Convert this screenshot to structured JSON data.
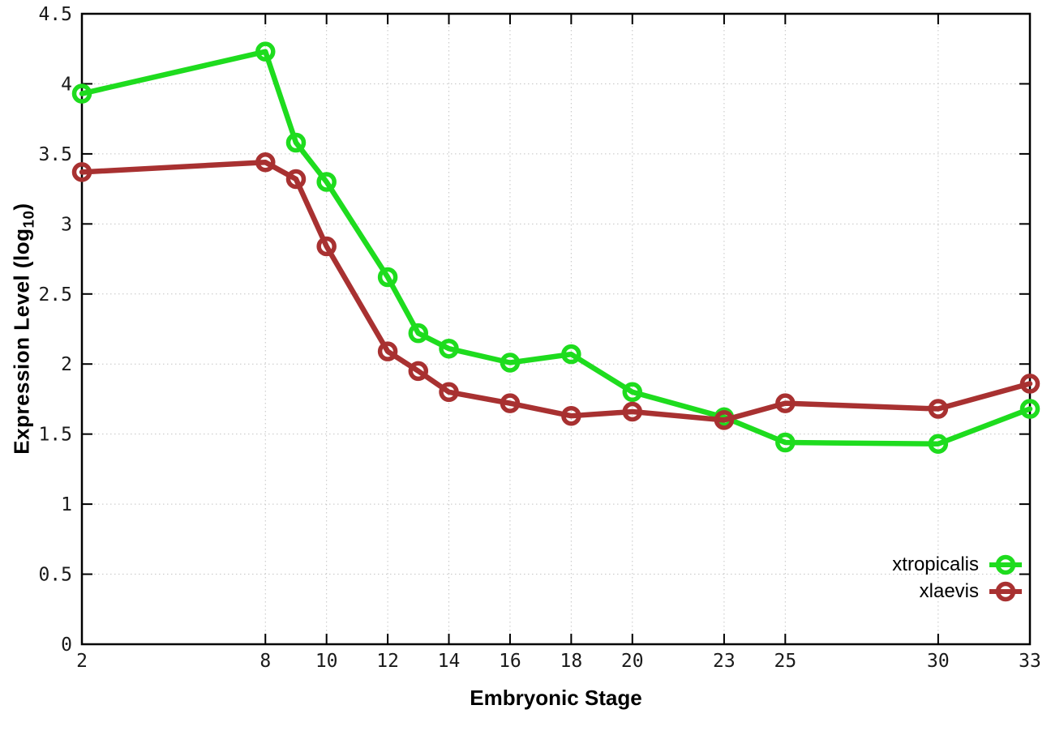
{
  "labels": {
    "xlabel": "Embryonic Stage",
    "ylabel_prefix": "Expression Level (log",
    "ylabel_sub": "10",
    "ylabel_suffix": ")"
  },
  "chart_data": {
    "type": "line",
    "title": "",
    "xlabel": "Embryonic Stage",
    "ylabel": "Expression Level (log10)",
    "xlim": [
      2,
      33
    ],
    "ylim": [
      0,
      4.5
    ],
    "grid": true,
    "legend_position": "bottom-right",
    "x_ticks": [
      2,
      8,
      10,
      12,
      14,
      16,
      18,
      20,
      23,
      25,
      30,
      33
    ],
    "y_ticks": [
      0,
      0.5,
      1,
      1.5,
      2,
      2.5,
      3,
      3.5,
      4,
      4.5
    ],
    "x": [
      2,
      8,
      9,
      10,
      12,
      13,
      14,
      16,
      18,
      20,
      23,
      25,
      30,
      33
    ],
    "series": [
      {
        "name": "xtropicalis",
        "color": "#1edc1e",
        "marker": "open-circle",
        "values": [
          3.93,
          4.23,
          3.58,
          3.3,
          2.62,
          2.22,
          2.11,
          2.01,
          2.07,
          1.8,
          1.62,
          1.44,
          1.43,
          1.68
        ]
      },
      {
        "name": "xlaevis",
        "color": "#a83131",
        "marker": "open-circle",
        "values": [
          3.37,
          3.44,
          3.32,
          2.84,
          2.09,
          1.95,
          1.8,
          1.72,
          1.63,
          1.66,
          1.6,
          1.72,
          1.68,
          1.86
        ]
      }
    ]
  },
  "style": {
    "grid_color": "#c4c4c4",
    "axis_color": "#000000",
    "tick_label_color": "#1a1a1a",
    "background": "#ffffff"
  }
}
